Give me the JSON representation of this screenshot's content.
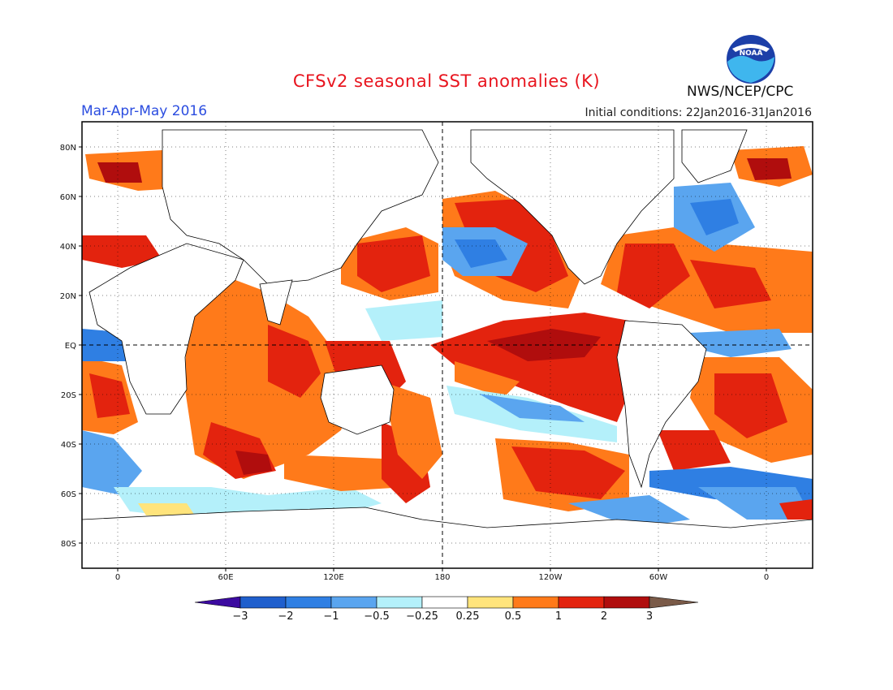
{
  "header": {
    "title": "CFSv2 seasonal SST anomalies (K)",
    "season": "Mar-Apr-May 2016",
    "initial_conditions": "Initial conditions: 22Jan2016-31Jan2016",
    "agency": "NWS/NCEP/CPC",
    "logo_text": "NOAA"
  },
  "map": {
    "lat_ticks": [
      "80N",
      "60N",
      "40N",
      "20N",
      "EQ",
      "20S",
      "40S",
      "60S",
      "80S"
    ],
    "lon_ticks": [
      "0",
      "60E",
      "120E",
      "180",
      "120W",
      "60W",
      "0"
    ]
  },
  "colorbar": {
    "labels": [
      "−3",
      "−2",
      "−1",
      "−0.5",
      "−0.25",
      "0.25",
      "0.5",
      "1",
      "2",
      "3"
    ],
    "colors": [
      "#3c0aa0",
      "#1f5fcd",
      "#2f7fe3",
      "#5aa5ef",
      "#b4f0fa",
      "#ffffff",
      "#ffe47c",
      "#ff7a1a",
      "#e3230e",
      "#b00d0d",
      "#7a5a48"
    ]
  },
  "colors": {
    "title": "#e8141e",
    "season": "#2b4de0",
    "warm": "#ff7a1a",
    "hot": "#e3230e",
    "very_hot": "#b00d0d",
    "cool": "#5aa5ef",
    "cold": "#2f7fe3",
    "light_cool": "#b4f0fa",
    "light_warm": "#ffe47c"
  }
}
